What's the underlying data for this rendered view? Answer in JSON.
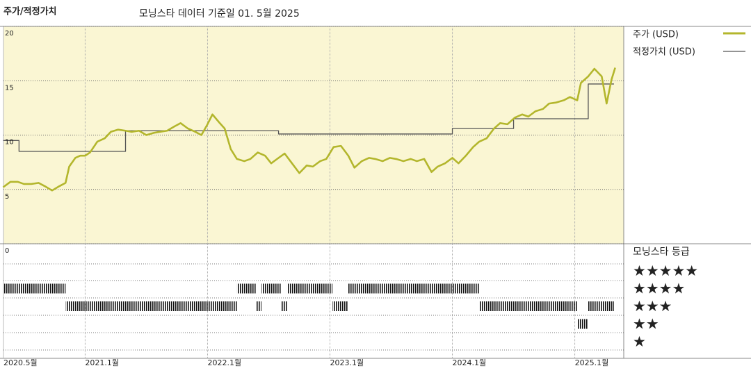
{
  "chart_data": {
    "type": "line",
    "title": "주가/적정가치",
    "subtitle": "모닝스타 데이터 기준일 01. 5월 2025",
    "xlim": [
      2020.333,
      2025.4
    ],
    "xticks": [
      {
        "value": 2020.333,
        "label": "2020.5월"
      },
      {
        "value": 2021,
        "label": "2021.1월"
      },
      {
        "value": 2022,
        "label": "2022.1월"
      },
      {
        "value": 2023,
        "label": "2023.1월"
      },
      {
        "value": 2024,
        "label": "2024.1월"
      },
      {
        "value": 2025,
        "label": "2025.1월"
      }
    ],
    "ylim": [
      0,
      20
    ],
    "yticks": [
      0,
      5,
      10,
      15,
      20
    ],
    "grid": true,
    "background": "#faf6d3",
    "series": [
      {
        "name": "주가 (USD)",
        "color": "#b3b62c",
        "x": [
          2020.33,
          2020.39,
          2020.45,
          2020.5,
          2020.56,
          2020.62,
          2020.67,
          2020.73,
          2020.79,
          2020.84,
          2020.87,
          2020.92,
          2020.96,
          2021.0,
          2021.04,
          2021.1,
          2021.16,
          2021.21,
          2021.27,
          2021.33,
          2021.38,
          2021.44,
          2021.5,
          2021.56,
          2021.61,
          2021.67,
          2021.73,
          2021.78,
          2021.84,
          2021.9,
          2021.95,
          2022.0,
          2022.04,
          2022.1,
          2022.14,
          2022.19,
          2022.24,
          2022.3,
          2022.35,
          2022.41,
          2022.47,
          2022.52,
          2022.58,
          2022.63,
          2022.69,
          2022.75,
          2022.81,
          2022.86,
          2022.92,
          2022.97,
          2023.03,
          2023.09,
          2023.15,
          2023.2,
          2023.26,
          2023.32,
          2023.37,
          2023.43,
          2023.49,
          2023.54,
          2023.6,
          2023.66,
          2023.71,
          2023.77,
          2023.83,
          2023.88,
          2023.94,
          2024.0,
          2024.05,
          2024.11,
          2024.17,
          2024.22,
          2024.28,
          2024.34,
          2024.39,
          2024.45,
          2024.51,
          2024.57,
          2024.62,
          2024.68,
          2024.74,
          2024.79,
          2024.85,
          2024.91,
          2024.96,
          2025.02,
          2025.05,
          2025.11,
          2025.16,
          2025.22,
          2025.26,
          2025.3,
          2025.33
        ],
        "values": [
          5.2,
          5.7,
          5.7,
          5.5,
          5.5,
          5.6,
          5.3,
          4.9,
          5.3,
          5.6,
          7.1,
          7.9,
          8.1,
          8.1,
          8.4,
          9.4,
          9.7,
          10.3,
          10.5,
          10.4,
          10.3,
          10.4,
          10.0,
          10.2,
          10.3,
          10.4,
          10.8,
          11.1,
          10.6,
          10.3,
          10.0,
          11.0,
          11.9,
          11.1,
          10.6,
          8.7,
          7.8,
          7.6,
          7.8,
          8.4,
          8.1,
          7.4,
          7.9,
          8.3,
          7.4,
          6.5,
          7.2,
          7.1,
          7.6,
          7.8,
          8.9,
          9.0,
          8.1,
          7.0,
          7.6,
          7.9,
          7.8,
          7.6,
          7.9,
          7.8,
          7.6,
          7.8,
          7.6,
          7.8,
          6.6,
          7.1,
          7.4,
          7.9,
          7.4,
          8.1,
          8.9,
          9.4,
          9.7,
          10.6,
          11.1,
          11.0,
          11.6,
          11.9,
          11.7,
          12.2,
          12.4,
          12.9,
          13.0,
          13.2,
          13.5,
          13.2,
          14.8,
          15.4,
          16.1,
          15.4,
          12.9,
          15.1,
          16.2
        ]
      },
      {
        "name": "적정가치 (USD)",
        "color": "#555555",
        "step": true,
        "x": [
          2020.33,
          2020.46,
          2021.33,
          2022.58,
          2024.0,
          2024.5,
          2025.11,
          2025.32
        ],
        "values": [
          9.5,
          8.5,
          10.4,
          10.1,
          10.6,
          11.5,
          14.7,
          14.7
        ]
      }
    ],
    "rating": {
      "title": "모닝스타 등급",
      "ticks": [
        {
          "value": 5,
          "label": "★★★★★"
        },
        {
          "value": 4,
          "label": "★★★★"
        },
        {
          "value": 3,
          "label": "★★★"
        },
        {
          "value": 2,
          "label": "★★"
        },
        {
          "value": 1,
          "label": "★"
        }
      ],
      "segments": [
        {
          "start": 2020.33,
          "end": 2020.84,
          "rating": 4
        },
        {
          "start": 2020.84,
          "end": 2022.24,
          "rating": 3
        },
        {
          "start": 2022.24,
          "end": 2022.4,
          "rating": 4
        },
        {
          "start": 2022.4,
          "end": 2022.44,
          "rating": 3
        },
        {
          "start": 2022.44,
          "end": 2022.6,
          "rating": 4
        },
        {
          "start": 2022.6,
          "end": 2022.65,
          "rating": 3
        },
        {
          "start": 2022.65,
          "end": 2023.02,
          "rating": 4
        },
        {
          "start": 2023.02,
          "end": 2023.15,
          "rating": 3
        },
        {
          "start": 2023.15,
          "end": 2024.22,
          "rating": 4
        },
        {
          "start": 2024.22,
          "end": 2025.02,
          "rating": 3
        },
        {
          "start": 2025.02,
          "end": 2025.11,
          "rating": 2
        },
        {
          "start": 2025.11,
          "end": 2025.32,
          "rating": 3
        }
      ]
    }
  }
}
